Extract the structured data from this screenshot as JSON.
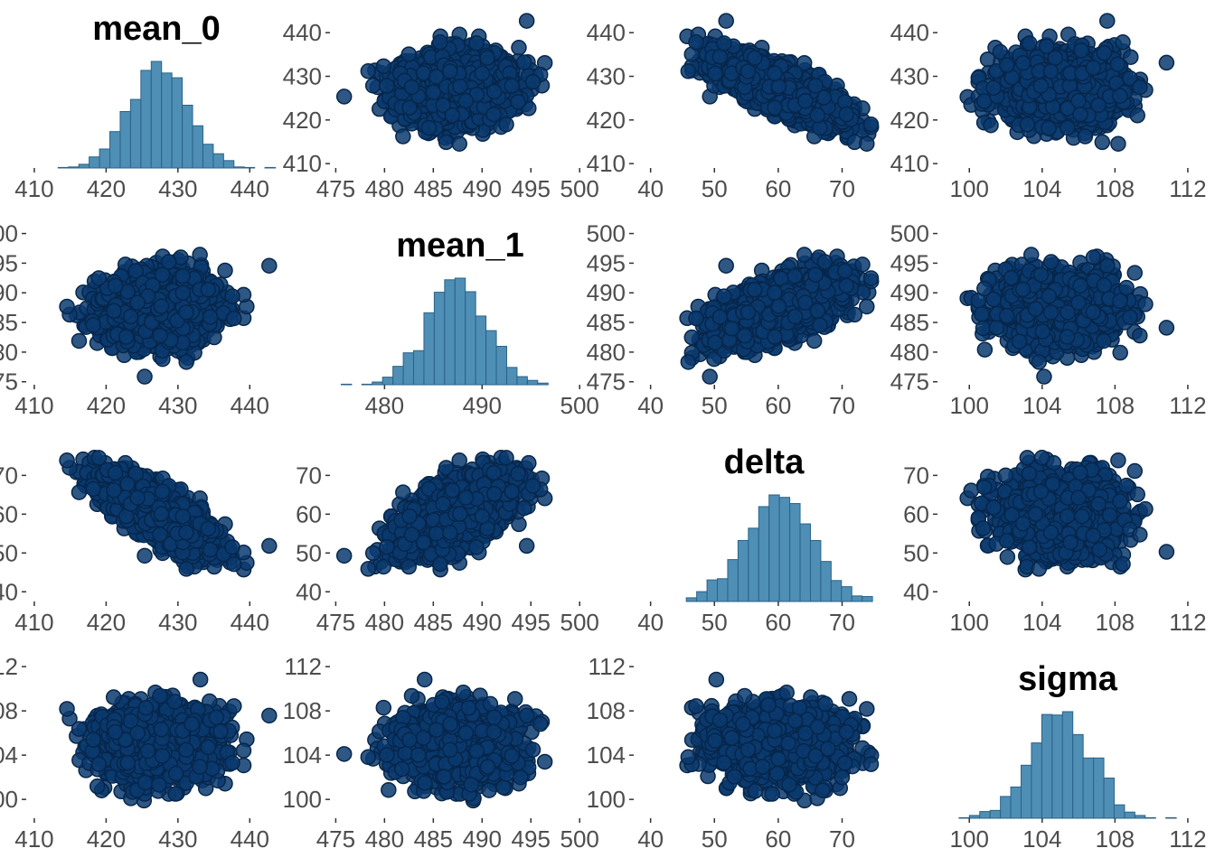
{
  "chart_data": {
    "type": "pairs",
    "variables": [
      "mean_0",
      "mean_1",
      "delta",
      "sigma"
    ],
    "colors": {
      "point_fill": "#0b3a6e",
      "point_stroke": "#06264a",
      "hist_fill": "#4f8fb5",
      "hist_stroke": "#2a6288",
      "tick": "#333333",
      "tick_label": "#4d4d4d"
    },
    "axes": {
      "mean_0": {
        "range": [
          409,
          445
        ],
        "ticks": [
          410,
          420,
          430,
          440
        ]
      },
      "mean_1": {
        "range": [
          474.5,
          501
        ],
        "ticks": [
          475,
          480,
          485,
          490,
          495,
          500
        ]
      },
      "delta": {
        "range": [
          37.5,
          78
        ],
        "ticks": [
          40,
          50,
          60,
          70
        ]
      },
      "sigma": {
        "range": [
          98.3,
          112.5
        ],
        "ticks": [
          100,
          104,
          108,
          112
        ]
      }
    },
    "diagonal_x_ticks": {
      "mean_0": [
        410,
        420,
        430,
        440
      ],
      "mean_1": [
        480,
        490,
        500
      ],
      "delta": [
        40,
        50,
        60,
        70
      ],
      "sigma": [
        100,
        104,
        108,
        112
      ]
    },
    "distributions": {
      "mean_0": {
        "mean": 427.5,
        "sd": 4.2
      },
      "mean_1": {
        "mean": 487.5,
        "sd": 3.0
      },
      "delta": {
        "mean": 60.0,
        "sd": 5.2
      },
      "sigma": {
        "mean": 105.0,
        "sd": 1.7
      }
    },
    "correlations": {
      "mean_0~mean_1": 0.05,
      "mean_0~delta": -0.82,
      "mean_0~sigma": 0.0,
      "mean_1~delta": 0.6,
      "mean_1~sigma": 0.0,
      "delta~sigma": 0.0
    },
    "histogram_bins": 25
  }
}
